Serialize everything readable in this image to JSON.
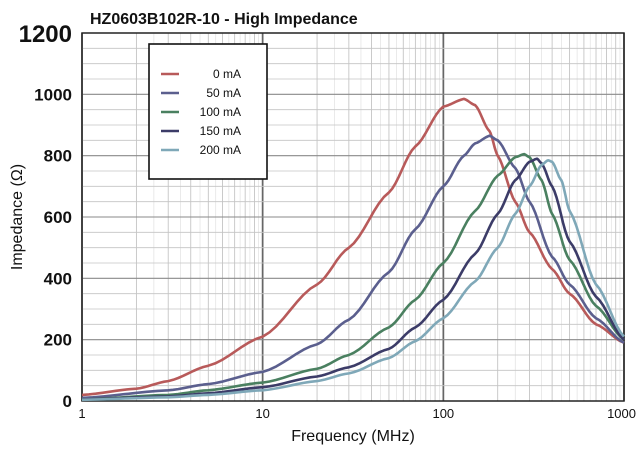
{
  "chart_data": {
    "type": "line",
    "title": "HZ0603B102R-10 - High Impedance",
    "xlabel": "Frequency (MHz)",
    "ylabel": "Impedance (Ω)",
    "xscale": "log",
    "xlim": [
      1,
      1000
    ],
    "ylim": [
      0,
      1200
    ],
    "xticks": [
      1,
      10,
      100,
      1000
    ],
    "xtick_labels": [
      "1",
      "10",
      "100",
      "1000"
    ],
    "yticks": [
      0,
      200,
      400,
      600,
      800,
      1000,
      1200
    ],
    "ytick_labels": [
      "0",
      "200",
      "400",
      "600",
      "800",
      "1000",
      "1200"
    ],
    "grid": true,
    "legend_position": "top-left",
    "series": [
      {
        "name": "0 mA",
        "color": "#b85a5a",
        "x": [
          1,
          2,
          3,
          5,
          10,
          20,
          30,
          50,
          70,
          100,
          130,
          150,
          180,
          200,
          250,
          300,
          400,
          500,
          700,
          1000
        ],
        "y": [
          20,
          40,
          65,
          115,
          210,
          380,
          500,
          680,
          830,
          960,
          985,
          965,
          880,
          800,
          650,
          550,
          430,
          350,
          250,
          190
        ]
      },
      {
        "name": "50 mA",
        "color": "#5b5f8e",
        "x": [
          1,
          3,
          5,
          10,
          20,
          30,
          50,
          70,
          100,
          130,
          150,
          180,
          200,
          250,
          300,
          400,
          500,
          700,
          1000
        ],
        "y": [
          10,
          35,
          55,
          95,
          185,
          265,
          420,
          560,
          700,
          800,
          840,
          865,
          850,
          760,
          650,
          470,
          380,
          270,
          190
        ]
      },
      {
        "name": "100 mA",
        "color": "#4a8060",
        "x": [
          1,
          3,
          5,
          10,
          20,
          30,
          50,
          70,
          100,
          150,
          200,
          250,
          280,
          300,
          350,
          400,
          500,
          700,
          1000
        ],
        "y": [
          5,
          20,
          35,
          60,
          105,
          150,
          240,
          330,
          450,
          620,
          735,
          795,
          805,
          795,
          720,
          610,
          460,
          310,
          200
        ]
      },
      {
        "name": "150 mA",
        "color": "#3c3c68",
        "x": [
          1,
          3,
          5,
          10,
          20,
          30,
          50,
          70,
          100,
          150,
          200,
          250,
          300,
          330,
          350,
          400,
          500,
          700,
          1000
        ],
        "y": [
          5,
          15,
          25,
          45,
          80,
          110,
          170,
          240,
          330,
          480,
          610,
          720,
          780,
          790,
          775,
          700,
          520,
          340,
          200
        ]
      },
      {
        "name": "200 mA",
        "color": "#7fa8b8",
        "x": [
          1,
          3,
          5,
          10,
          20,
          30,
          50,
          70,
          100,
          150,
          200,
          250,
          300,
          350,
          380,
          400,
          450,
          500,
          700,
          1000
        ],
        "y": [
          4,
          12,
          20,
          35,
          65,
          90,
          140,
          195,
          270,
          390,
          500,
          610,
          700,
          770,
          785,
          780,
          720,
          620,
          380,
          210
        ]
      }
    ]
  }
}
